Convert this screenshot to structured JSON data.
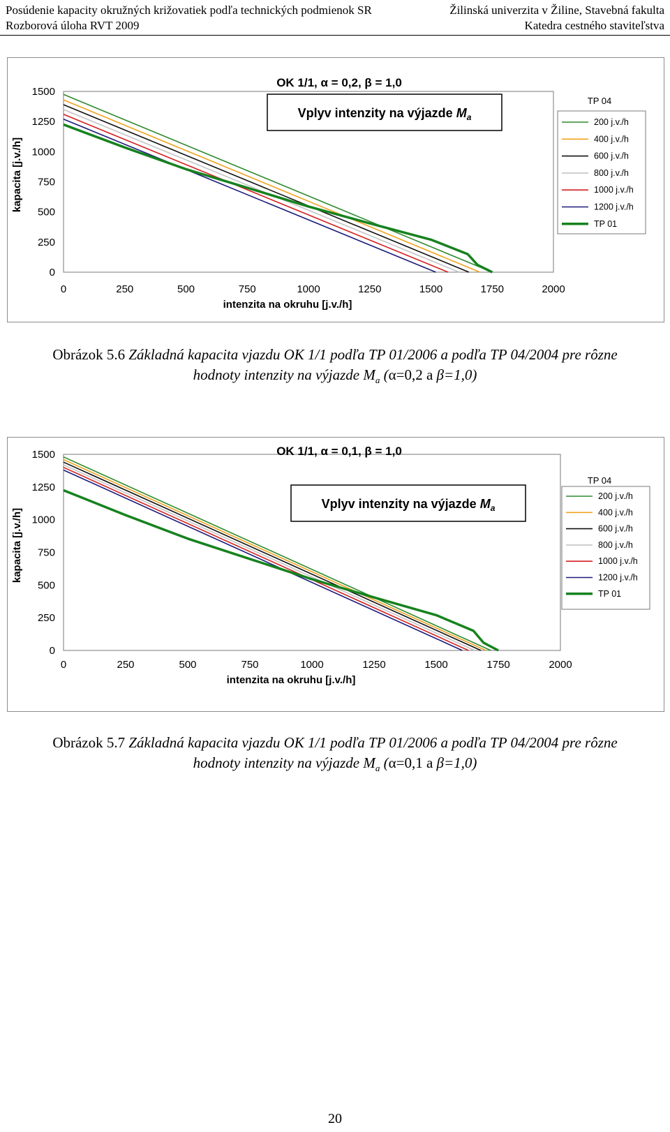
{
  "header": {
    "left_line1": "Posúdenie kapacity okružných križovatiek podľa technických podmienok SR",
    "left_line2": "Rozborová úloha RVT 2009",
    "right_line1": "Žilinská univerzita v Žiline, Stavebná fakulta",
    "right_line2": "Katedra cestného staviteľstva"
  },
  "chart_data": [
    {
      "type": "line",
      "title": "OK 1/1,  α  = 0,2,  β  = 1,0",
      "subtitle_main": "Vplyv intenzity na výjazde ",
      "subtitle_var": "M",
      "subtitle_sub": "a",
      "xlabel": "intenzita na okruhu [j.v./h]",
      "ylabel": "kapacita [j.v./h]",
      "xlim": [
        0,
        2000
      ],
      "ylim": [
        0,
        1500
      ],
      "xticks": [
        "0",
        "250",
        "500",
        "750",
        "1000",
        "1250",
        "1500",
        "1750",
        "2000"
      ],
      "yticks": [
        "0",
        "250",
        "500",
        "750",
        "1000",
        "1250",
        "1500"
      ],
      "legend_title": "TP 04",
      "legend_position": "right",
      "series": [
        {
          "name": "200 j.v./h",
          "color": "#2f8a2f",
          "x": [
            0,
            1750
          ],
          "y": [
            1475,
            0
          ]
        },
        {
          "name": "400 j.v./h",
          "color": "#f0a21e",
          "x": [
            0,
            1700
          ],
          "y": [
            1430,
            0
          ]
        },
        {
          "name": "600 j.v./h",
          "color": "#111111",
          "x": [
            0,
            1655
          ],
          "y": [
            1390,
            0
          ]
        },
        {
          "name": "800 j.v./h",
          "color": "#c4c4c4",
          "x": [
            0,
            1615
          ],
          "y": [
            1350,
            0
          ]
        },
        {
          "name": "1000 j.v./h",
          "color": "#d42020",
          "x": [
            0,
            1570
          ],
          "y": [
            1310,
            0
          ]
        },
        {
          "name": "1200 j.v./h",
          "color": "#1a1a7a",
          "x": [
            0,
            1520
          ],
          "y": [
            1270,
            0
          ]
        },
        {
          "name": "TP 01",
          "color": "#16821e",
          "bold": true,
          "x": [
            0,
            250,
            500,
            750,
            1000,
            1250,
            1500,
            1650,
            1690,
            1750
          ],
          "y": [
            1225,
            1035,
            855,
            700,
            545,
            405,
            270,
            150,
            60,
            0
          ]
        }
      ]
    },
    {
      "type": "line",
      "title": "OK 1/1,  α  = 0,1,  β  = 1,0",
      "subtitle_main": "Vplyv intenzity na výjazde ",
      "subtitle_var": "M",
      "subtitle_sub": "a",
      "xlabel": "intenzita na okruhu [j.v./h]",
      "ylabel": "kapacita [j.v./h]",
      "xlim": [
        0,
        2000
      ],
      "ylim": [
        0,
        1500
      ],
      "xticks": [
        "0",
        "250",
        "500",
        "750",
        "1000",
        "1250",
        "1500",
        "1750",
        "2000"
      ],
      "yticks": [
        "0",
        "250",
        "500",
        "750",
        "1000",
        "1250",
        "1500"
      ],
      "legend_title": "TP 04",
      "legend_position": "right",
      "series": [
        {
          "name": "200 j.v./h",
          "color": "#2f8a2f",
          "x": [
            0,
            1720
          ],
          "y": [
            1480,
            0
          ]
        },
        {
          "name": "400 j.v./h",
          "color": "#f0a21e",
          "x": [
            0,
            1700
          ],
          "y": [
            1460,
            0
          ]
        },
        {
          "name": "600 j.v./h",
          "color": "#111111",
          "x": [
            0,
            1680
          ],
          "y": [
            1440,
            0
          ]
        },
        {
          "name": "800 j.v./h",
          "color": "#c4c4c4",
          "x": [
            0,
            1655
          ],
          "y": [
            1420,
            0
          ]
        },
        {
          "name": "1000 j.v./h",
          "color": "#d42020",
          "x": [
            0,
            1630
          ],
          "y": [
            1400,
            0
          ]
        },
        {
          "name": "1200 j.v./h",
          "color": "#1a1a7a",
          "x": [
            0,
            1605
          ],
          "y": [
            1380,
            0
          ]
        },
        {
          "name": "TP 01",
          "color": "#16821e",
          "bold": true,
          "x": [
            0,
            250,
            500,
            750,
            1000,
            1250,
            1500,
            1650,
            1690,
            1750
          ],
          "y": [
            1225,
            1035,
            855,
            700,
            545,
            405,
            270,
            150,
            60,
            0
          ]
        }
      ]
    }
  ],
  "captions": [
    {
      "label": "Obrázok 5.6",
      "text_before": " Základná kapacita vjazdu OK 1/1 podľa TP 01/2006 a podľa TP 04/2004 pre rôzne",
      "line2_before": "hodnoty intenzity na výjazde M",
      "line2_sub": "a",
      "line2_open": " (",
      "line2_params": "α=0,2 a ",
      "line2_tail": "β=1,0)"
    },
    {
      "label": "Obrázok 5.7",
      "text_before": " Základná kapacita vjazdu OK 1/1 podľa TP 01/2006 a podľa TP 04/2004 pre rôzne",
      "line2_before": "hodnoty intenzity na výjazde M",
      "line2_sub": "a",
      "line2_open": " (",
      "line2_params": "α=0,1 a ",
      "line2_tail": "β=1,0)"
    }
  ],
  "page_number": "20"
}
